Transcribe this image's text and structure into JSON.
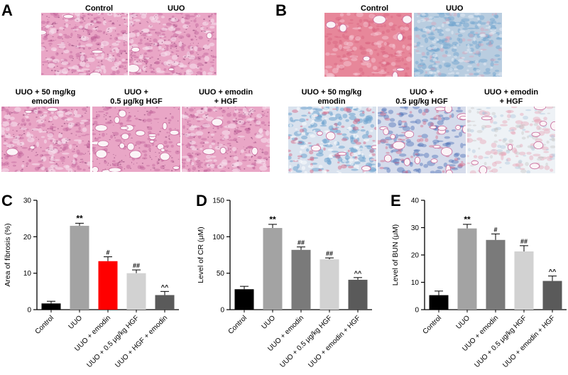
{
  "panels": {
    "A": {
      "letter": "A",
      "labels": {
        "control": "Control",
        "uuo": "UUO",
        "emodin_line1": "UUO + 50 mg/kg",
        "emodin_line2": "emodin",
        "hgf_line1": "UUO +",
        "hgf_line2": "0.5 µg/kg HGF",
        "combo_line1": "UUO + emodin",
        "combo_line2": "+ HGF"
      },
      "stain_colors": {
        "base": "#e9a6c6",
        "dark": "#b8548f",
        "light": "#f7dfec"
      }
    },
    "B": {
      "letter": "B",
      "labels": {
        "control": "Control",
        "uuo": "UUO",
        "emodin_line1": "UUO + 50 mg/kg",
        "emodin_line2": "emodin",
        "hgf_line1": "UUO +",
        "hgf_line2": "0.5 µg/kg HGF",
        "combo_line1": "UUO + emodin",
        "combo_line2": "+ HGF"
      },
      "stain_colors": {
        "red": "#e7879a",
        "blue": "#6fa4cf",
        "pale": "#eef2f6"
      }
    },
    "C": {
      "letter": "C"
    },
    "D": {
      "letter": "D"
    },
    "E": {
      "letter": "E"
    }
  },
  "chart_data": [
    {
      "id": "C",
      "type": "bar",
      "ylabel": "Area of fibrosis (%)",
      "ylim": [
        0,
        30
      ],
      "yticks": [
        0,
        10,
        20,
        30
      ],
      "categories": [
        "Control",
        "UUO",
        "UUO + emodin",
        "UUO + 0.5 μg/kg HGF",
        "UUO + HGF + emodin"
      ],
      "values": [
        1.7,
        23.0,
        13.3,
        10.0,
        4.0
      ],
      "errors": [
        0.6,
        0.7,
        1.2,
        0.9,
        1.0
      ],
      "annotations": [
        "",
        "**",
        "#",
        "##",
        "^^"
      ],
      "colors": [
        "#000000",
        "#a3a3a3",
        "#ff0000",
        "#d2d2d2",
        "#5a5a5a"
      ]
    },
    {
      "id": "D",
      "type": "bar",
      "ylabel": "Level of CR (μM)",
      "ylim": [
        0,
        150
      ],
      "yticks": [
        0,
        50,
        100,
        150
      ],
      "categories": [
        "Control",
        "UUO",
        "UUO + emodin",
        "UUO + 0.5 μg/kg HGF",
        "UUO + emodin + HGF"
      ],
      "values": [
        28,
        112,
        82,
        69,
        41
      ],
      "errors": [
        4,
        5,
        4,
        2,
        3
      ],
      "annotations": [
        "",
        "**",
        "##",
        "##",
        "^^"
      ],
      "colors": [
        "#000000",
        "#a3a3a3",
        "#7a7a7a",
        "#d2d2d2",
        "#5a5a5a"
      ]
    },
    {
      "id": "E",
      "type": "bar",
      "ylabel": "Level of BUN (μM)",
      "ylim": [
        0,
        40
      ],
      "yticks": [
        0,
        10,
        20,
        30,
        40
      ],
      "categories": [
        "Control",
        "UUO",
        "UUO + emodin",
        "UUO + 0.5 μg/kg HGF",
        "UUO + emodin + HGF"
      ],
      "values": [
        5.3,
        29.7,
        25.5,
        21.3,
        10.5
      ],
      "errors": [
        1.5,
        1.5,
        2.2,
        2.1,
        1.8
      ],
      "annotations": [
        "",
        "**",
        "#",
        "##",
        "^^"
      ],
      "colors": [
        "#000000",
        "#a3a3a3",
        "#7a7a7a",
        "#d2d2d2",
        "#5a5a5a"
      ]
    }
  ]
}
